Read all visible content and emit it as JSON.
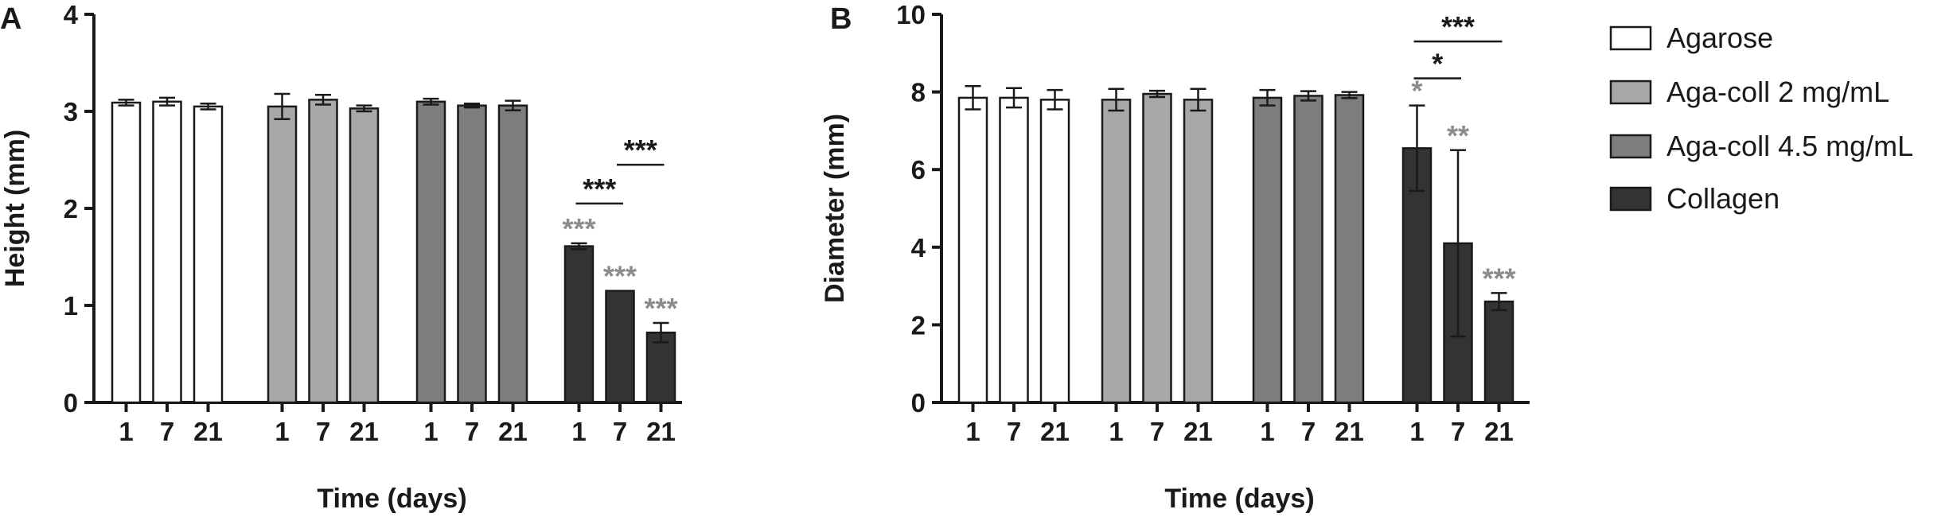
{
  "legend": [
    {
      "label": "Agarose",
      "color": "#ffffff"
    },
    {
      "label": "Aga-coll 2 mg/mL",
      "color": "#a8a8a8"
    },
    {
      "label": "Aga-coll 4.5 mg/mL",
      "color": "#7d7d7d"
    },
    {
      "label": "Collagen",
      "color": "#333333"
    }
  ],
  "chart_data": [
    {
      "panel": "A",
      "type": "bar",
      "title": "",
      "xlabel": "Time (days)",
      "ylabel": "Height (mm)",
      "ylim": [
        0,
        4
      ],
      "yticks": [
        0,
        1,
        2,
        3,
        4
      ],
      "categories": [
        "1",
        "7",
        "21"
      ],
      "series": [
        {
          "name": "Agarose",
          "values": [
            3.09,
            3.1,
            3.05
          ],
          "errors": [
            0.03,
            0.04,
            0.03
          ]
        },
        {
          "name": "Aga-coll 2 mg/mL",
          "values": [
            3.05,
            3.12,
            3.03
          ],
          "errors": [
            0.13,
            0.05,
            0.03
          ]
        },
        {
          "name": "Aga-coll 4.5 mg/mL",
          "values": [
            3.1,
            3.06,
            3.06
          ],
          "errors": [
            0.03,
            0.02,
            0.05
          ]
        },
        {
          "name": "Collagen",
          "values": [
            1.61,
            1.15,
            0.72
          ],
          "errors": [
            0.03,
            0.0,
            0.1
          ]
        }
      ],
      "annotations": [
        {
          "group": 3,
          "bar": 0,
          "text": "***",
          "color": "#8c8c8c"
        },
        {
          "group": 3,
          "bar": 1,
          "text": "***",
          "color": "#8c8c8c"
        },
        {
          "group": 3,
          "bar": 2,
          "text": "***",
          "color": "#8c8c8c"
        }
      ],
      "brackets": [
        {
          "group": 3,
          "from": 0,
          "to": 1,
          "text": "***",
          "y": 2.05
        },
        {
          "group": 3,
          "from": 1,
          "to": 2,
          "text": "***",
          "y": 2.45
        }
      ]
    },
    {
      "panel": "B",
      "type": "bar",
      "title": "",
      "xlabel": "Time (days)",
      "ylabel": "Diameter (mm)",
      "ylim": [
        0,
        10
      ],
      "yticks": [
        0,
        2,
        4,
        6,
        8,
        10
      ],
      "categories": [
        "1",
        "7",
        "21"
      ],
      "series": [
        {
          "name": "Agarose",
          "values": [
            7.85,
            7.85,
            7.8
          ],
          "errors": [
            0.3,
            0.25,
            0.25
          ]
        },
        {
          "name": "Aga-coll 2 mg/mL",
          "values": [
            7.8,
            7.95,
            7.8
          ],
          "errors": [
            0.28,
            0.08,
            0.28
          ]
        },
        {
          "name": "Aga-coll 4.5 mg/mL",
          "values": [
            7.85,
            7.9,
            7.92
          ],
          "errors": [
            0.2,
            0.12,
            0.08
          ]
        },
        {
          "name": "Collagen",
          "values": [
            6.55,
            4.1,
            2.6
          ],
          "errors": [
            1.1,
            2.4,
            0.22
          ]
        }
      ],
      "annotations": [
        {
          "group": 3,
          "bar": 0,
          "text": "*",
          "color": "#8c8c8c"
        },
        {
          "group": 3,
          "bar": 1,
          "text": "**",
          "color": "#8c8c8c"
        },
        {
          "group": 3,
          "bar": 2,
          "text": "***",
          "color": "#8c8c8c"
        }
      ],
      "brackets": [
        {
          "group": 3,
          "from": 0,
          "to": 1,
          "text": "*",
          "y": 8.35
        },
        {
          "group": 3,
          "from": 0,
          "to": 2,
          "text": "***",
          "y": 9.3
        }
      ]
    }
  ]
}
